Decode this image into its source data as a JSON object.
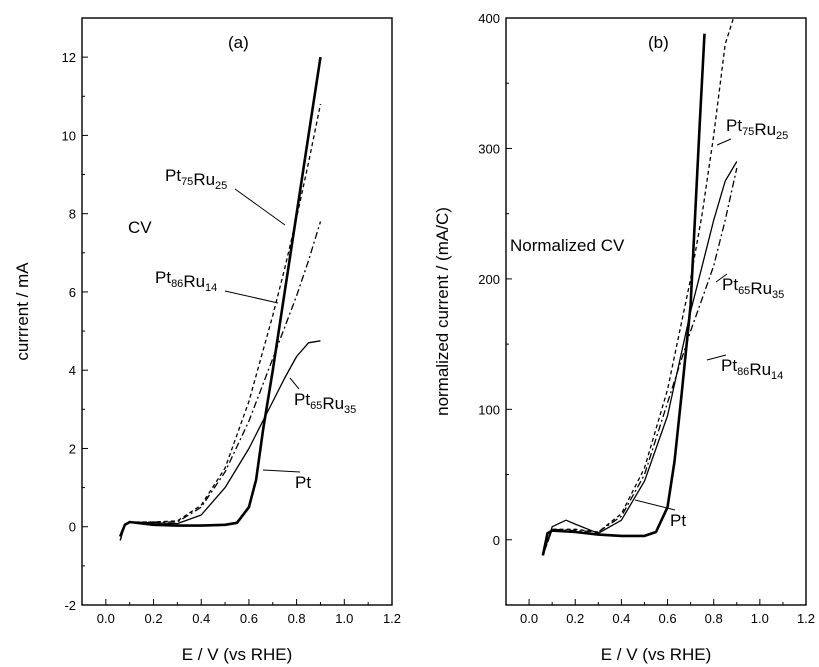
{
  "chart_data": [
    {
      "type": "line",
      "panel_label": "(a)",
      "annotation": "CV",
      "xlabel": "E / V (vs RHE)",
      "ylabel": "currrent / mA",
      "xlim": [
        -0.1,
        1.2
      ],
      "ylim": [
        -2,
        13
      ],
      "xticks": [
        "0.0",
        "0.2",
        "0.4",
        "0.6",
        "0.8",
        "1.0",
        "1.2"
      ],
      "yticks": [
        "-2",
        "0",
        "2",
        "4",
        "6",
        "8",
        "10",
        "12"
      ],
      "series": [
        {
          "label": {
            "base": "Pt",
            "parts": []
          },
          "style": "solid-thick",
          "x": [
            0.06,
            0.08,
            0.1,
            0.2,
            0.3,
            0.4,
            0.5,
            0.55,
            0.6,
            0.63,
            0.66,
            0.7,
            0.75,
            0.8,
            0.85,
            0.9
          ],
          "y": [
            -0.25,
            0.05,
            0.12,
            0.05,
            0.03,
            0.03,
            0.05,
            0.1,
            0.5,
            1.2,
            2.5,
            4.0,
            6.0,
            8.0,
            10.0,
            12.0
          ]
        },
        {
          "label": {
            "base": "",
            "parts": [
              [
                "Pt",
                "75"
              ],
              [
                "Ru",
                "25"
              ]
            ]
          },
          "style": "dashed",
          "x": [
            0.06,
            0.08,
            0.1,
            0.2,
            0.3,
            0.4,
            0.5,
            0.6,
            0.7,
            0.75,
            0.8,
            0.85,
            0.9
          ],
          "y": [
            -0.35,
            0.05,
            0.12,
            0.12,
            0.15,
            0.55,
            1.5,
            3.2,
            5.4,
            6.6,
            7.9,
            9.3,
            10.8
          ]
        },
        {
          "label": {
            "base": "",
            "parts": [
              [
                "Pt",
                "86"
              ],
              [
                "Ru",
                "14"
              ]
            ]
          },
          "style": "dash-dot",
          "x": [
            0.06,
            0.08,
            0.1,
            0.2,
            0.3,
            0.4,
            0.5,
            0.6,
            0.7,
            0.75,
            0.8,
            0.85,
            0.9
          ],
          "y": [
            -0.35,
            0.05,
            0.1,
            0.12,
            0.12,
            0.5,
            1.4,
            2.7,
            4.3,
            5.1,
            5.9,
            6.8,
            7.8
          ]
        },
        {
          "label": {
            "base": "",
            "parts": [
              [
                "Pt",
                "65"
              ],
              [
                "Ru",
                "35"
              ]
            ]
          },
          "style": "solid-thin",
          "x": [
            0.06,
            0.08,
            0.1,
            0.2,
            0.3,
            0.4,
            0.5,
            0.6,
            0.7,
            0.75,
            0.8,
            0.85,
            0.9
          ],
          "y": [
            -0.25,
            0.05,
            0.12,
            0.1,
            0.08,
            0.3,
            1.0,
            2.0,
            3.2,
            3.8,
            4.35,
            4.7,
            4.75
          ]
        }
      ]
    },
    {
      "type": "line",
      "panel_label": "(b)",
      "annotation": "Normalized CV",
      "xlabel": "E / V (vs RHE)",
      "ylabel": "normalized current / (mA/C)",
      "xlim": [
        -0.1,
        1.2
      ],
      "ylim": [
        -50,
        400
      ],
      "xticks": [
        "0.0",
        "0.2",
        "0.4",
        "0.6",
        "0.8",
        "1.0",
        "1.2"
      ],
      "yticks": [
        "0",
        "100",
        "200",
        "300",
        "400"
      ],
      "series": [
        {
          "label": {
            "base": "Pt",
            "parts": []
          },
          "style": "solid-thick",
          "x": [
            0.06,
            0.08,
            0.1,
            0.2,
            0.3,
            0.4,
            0.5,
            0.55,
            0.6,
            0.63,
            0.66,
            0.7,
            0.72,
            0.74,
            0.76
          ],
          "y": [
            -12,
            5,
            7,
            6,
            4,
            3,
            3,
            6,
            25,
            60,
            110,
            180,
            250,
            320,
            388
          ]
        },
        {
          "label": {
            "base": "",
            "parts": [
              [
                "Pt",
                "75"
              ],
              [
                "Ru",
                "25"
              ]
            ]
          },
          "style": "dashed",
          "x": [
            0.06,
            0.1,
            0.2,
            0.3,
            0.4,
            0.5,
            0.6,
            0.7,
            0.75,
            0.8,
            0.85,
            0.9
          ],
          "y": [
            -12,
            8,
            8,
            6,
            20,
            55,
            115,
            200,
            250,
            310,
            380,
            408
          ]
        },
        {
          "label": {
            "base": "",
            "parts": [
              [
                "Pt",
                "86"
              ],
              [
                "Ru",
                "14"
              ]
            ]
          },
          "style": "dash-dot",
          "x": [
            0.06,
            0.1,
            0.2,
            0.3,
            0.4,
            0.5,
            0.6,
            0.7,
            0.75,
            0.8,
            0.85,
            0.9
          ],
          "y": [
            -12,
            8,
            7,
            6,
            18,
            50,
            105,
            160,
            185,
            210,
            245,
            285
          ]
        },
        {
          "label": {
            "base": "",
            "parts": [
              [
                "Pt",
                "65"
              ],
              [
                "Ru",
                "35"
              ]
            ]
          },
          "style": "solid-thin",
          "x": [
            0.06,
            0.1,
            0.16,
            0.2,
            0.3,
            0.4,
            0.5,
            0.6,
            0.7,
            0.75,
            0.8,
            0.85,
            0.9
          ],
          "y": [
            -12,
            10,
            15,
            12,
            5,
            15,
            45,
            95,
            175,
            210,
            245,
            275,
            290
          ]
        }
      ]
    }
  ]
}
